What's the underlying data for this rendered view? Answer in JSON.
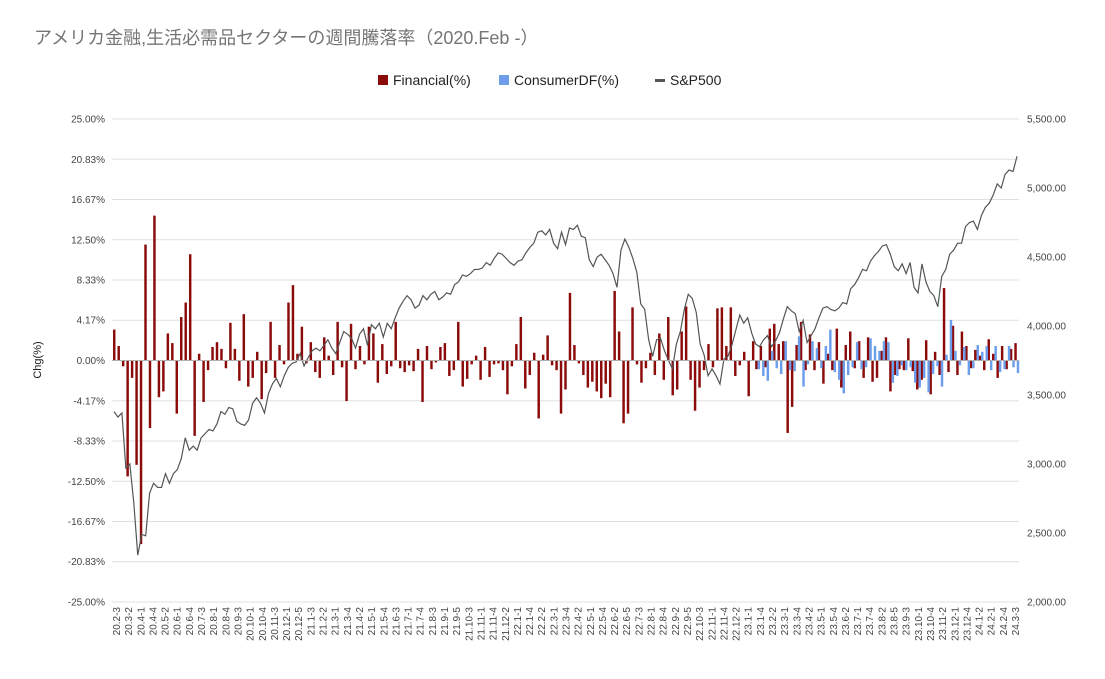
{
  "chart_data": {
    "type": "bar+line",
    "title": "アメリカ金融,生活必需品セクターの週間騰落率（2020.Feb -）",
    "ylabel": "Chg(%)",
    "y_left": {
      "lim": [
        -25.0,
        25.0
      ],
      "ticks": [
        25.0,
        20.83,
        16.67,
        12.5,
        8.33,
        4.17,
        0.0,
        -4.17,
        -8.33,
        -12.5,
        -16.67,
        -20.83,
        -25.0
      ],
      "tick_labels": [
        "25.00%",
        "20.83%",
        "16.67%",
        "12.50%",
        "8.33%",
        "4.17%",
        "0.00%",
        "-4.17%",
        "-8.33%",
        "-12.50%",
        "-16.67%",
        "-20.83%",
        "-25.00%"
      ]
    },
    "y_right": {
      "lim": [
        2000,
        5500
      ],
      "ticks": [
        5500,
        5000,
        4500,
        4000,
        3500,
        3000,
        2500,
        2000
      ],
      "tick_labels": [
        "5,500.00",
        "5,000.00",
        "4,500.00",
        "4,000.00",
        "3,500.00",
        "3,000.00",
        "2,500.00",
        "2,000.00"
      ]
    },
    "legend": {
      "position": "top",
      "items": [
        {
          "name": "Financial(%)",
          "color": "#8b0a0a",
          "marker": "square"
        },
        {
          "name": "ConsumerDF(%)",
          "color": "#6d9eeb",
          "marker": "square"
        },
        {
          "name": "S&P500",
          "color": "#555555",
          "marker": "line"
        }
      ]
    },
    "x_labels": [
      "20.2-3",
      "20.3-2",
      "20.4-1",
      "20.4-4",
      "20.5-2",
      "20.6-1",
      "20.6-4",
      "20.7-3",
      "20.8-1",
      "20.8-4",
      "20.9-3",
      "20.10-1",
      "20.10-4",
      "20.11-3",
      "20.12-1",
      "20.12-5",
      "21.1-3",
      "21.2-2",
      "21.3-1",
      "21.3-4",
      "21.4-2",
      "21.5-1",
      "21.5-4",
      "21.6-3",
      "21.7-1",
      "21.7-4",
      "21.8-3",
      "21.9-1",
      "21.9-5",
      "21.10-3",
      "21.11-1",
      "21.11-4",
      "21.12-2",
      "22.1-1",
      "22.1-4",
      "22.2-2",
      "22.3-1",
      "22.3-4",
      "22.4-2",
      "22.5-1",
      "22.5-4",
      "22.6-2",
      "22.6-5",
      "22.7-3",
      "22.8-1",
      "22.8-4",
      "22.9-2",
      "22.9-5",
      "22.10-3",
      "22.11-1",
      "22.11-4",
      "22.12-2",
      "23.1-1",
      "23.1-4",
      "23.2-2",
      "23.3-1",
      "23.3-4",
      "23.4-2",
      "23.5-1",
      "23.5-4",
      "23.6-2",
      "23.7-1",
      "23.7-4",
      "23.8-2",
      "23.8-5",
      "23.9-3",
      "23.10-1",
      "23.10-4",
      "23.11-2",
      "23.12-1",
      "23.12-4",
      "24.1-2",
      "24.2-1",
      "24.2-4",
      "24.3-3"
    ],
    "financial": [
      3.2,
      1.5,
      -0.6,
      -12.0,
      -1.8,
      -10.8,
      -19.0,
      12.0,
      -7.0,
      15.0,
      -3.8,
      -3.2,
      2.8,
      1.8,
      -5.5,
      4.5,
      6.0,
      11.0,
      -7.8,
      0.7,
      -4.3,
      -1.0,
      1.4,
      1.9,
      1.2,
      -0.8,
      3.9,
      1.2,
      -2.1,
      4.8,
      -2.7,
      -1.8,
      0.9,
      -4.0,
      -1.3,
      4.0,
      -1.8,
      1.6,
      -0.4,
      6.0,
      7.8,
      0.7,
      3.5,
      -0.3,
      1.9,
      -1.2,
      -1.8,
      2.4,
      0.5,
      -1.5,
      4.0,
      -0.7,
      -4.2,
      3.8,
      -0.9,
      1.5,
      -0.4,
      3.5,
      2.8,
      -2.3,
      1.7,
      -1.4,
      -0.6,
      4.0,
      -0.8,
      -1.2,
      -0.5,
      -1.1,
      1.2,
      -4.3,
      1.5,
      -0.9,
      -0.2,
      1.4,
      1.8,
      -1.6,
      -1.0,
      4.0,
      -2.7,
      -1.9,
      -0.4,
      0.5,
      -2.0,
      1.4,
      -1.7,
      -0.4,
      -0.3,
      -1.0,
      -3.5,
      -0.6,
      1.7,
      4.5,
      -2.9,
      -1.5,
      0.8,
      -6.0,
      0.6,
      2.6,
      -0.5,
      -1.0,
      -5.5,
      -3.0,
      7.0,
      1.6,
      -0.3,
      -1.5,
      -2.8,
      -2.2,
      -3.2,
      -3.9,
      -2.4,
      -3.8,
      7.2,
      3.0,
      -6.5,
      -5.5,
      5.5,
      -0.4,
      -2.3,
      -0.8,
      0.8,
      -1.5,
      2.8,
      -2.0,
      4.5,
      -3.6,
      -3.0,
      3.0,
      5.6,
      -2.0,
      -5.2,
      -2.8,
      -1.0,
      1.7,
      -0.7,
      5.4,
      5.5,
      1.5,
      5.5,
      -1.6,
      -0.5,
      0.9,
      -3.7,
      2.0,
      -0.9,
      1.5,
      -0.7,
      3.3,
      3.8,
      1.7,
      2.0,
      -7.5,
      -4.8,
      1.6,
      4.0,
      -1.0,
      2.7,
      -1.0,
      1.9,
      -2.4,
      0.7,
      -1.0,
      3.3,
      -2.8,
      1.6,
      3.0,
      -0.8,
      2.0,
      -1.8,
      2.4,
      -2.2,
      -1.8,
      1.0,
      2.4,
      -3.2,
      -1.5,
      -0.9,
      -1.0,
      2.3,
      -1.1,
      -3.0,
      -2.0,
      2.1,
      -3.5,
      0.9,
      -1.5,
      7.5,
      -1.2,
      3.6,
      -1.5,
      3.0,
      1.5,
      -0.8,
      1.1,
      0.5,
      -1.0,
      2.2,
      0.7,
      -1.8,
      1.5,
      -0.9,
      1.2,
      1.8
    ],
    "consumerdf_start_index": 144,
    "consumerdf": [
      -0.9,
      -1.6,
      -2.1,
      1.0,
      -0.8,
      -1.4,
      2.0,
      -1.0,
      -1.1,
      2.5,
      -2.7,
      -0.4,
      2.0,
      1.3,
      -0.8,
      1.5,
      3.2,
      -1.2,
      -2.0,
      -3.4,
      -1.5,
      -0.7,
      1.9,
      -0.9,
      -0.7,
      2.3,
      1.5,
      1.0,
      2.0,
      1.9,
      -2.3,
      -1.6,
      -0.5,
      -1.0,
      -0.7,
      -2.3,
      -2.8,
      -1.8,
      -3.3,
      -1.4,
      -0.6,
      -2.7,
      0.6,
      4.2,
      1.0,
      -0.5,
      1.4,
      -1.5,
      -0.8,
      1.6,
      0.9,
      1.5,
      -1.0,
      1.5,
      -1.2,
      -0.9,
      1.5,
      -0.7,
      -1.3,
      -0.8,
      0.5,
      1.7,
      -0.5,
      -0.9,
      1.2,
      0.8,
      -1.0,
      0.4
    ],
    "sp500": [
      3380,
      3340,
      3370,
      2970,
      3000,
      2720,
      2340,
      2490,
      2480,
      2790,
      2860,
      2830,
      2830,
      2930,
      2860,
      2930,
      2960,
      3040,
      3190,
      3100,
      3130,
      3100,
      3190,
      3220,
      3250,
      3240,
      3290,
      3380,
      3360,
      3410,
      3400,
      3310,
      3290,
      3280,
      3320,
      3440,
      3480,
      3440,
      3370,
      3510,
      3580,
      3620,
      3560,
      3640,
      3700,
      3730,
      3740,
      3800,
      3710,
      3770,
      3820,
      3840,
      3820,
      3860,
      3900,
      3840,
      3800,
      3880,
      3960,
      3940,
      3910,
      3840,
      3940,
      3980,
      3860,
      4010,
      3980,
      4020,
      3920,
      4020,
      3980,
      4060,
      4130,
      4180,
      4220,
      4190,
      4130,
      4150,
      4220,
      4190,
      4230,
      4250,
      4190,
      4210,
      4240,
      4230,
      4300,
      4320,
      4370,
      4360,
      4380,
      4410,
      4410,
      4420,
      4460,
      4440,
      4490,
      4530,
      4520,
      4490,
      4460,
      4440,
      4470,
      4480,
      4530,
      4570,
      4600,
      4680,
      4690,
      4660,
      4700,
      4600,
      4560,
      4680,
      4590,
      4710,
      4700,
      4730,
      4650,
      4640,
      4480,
      4430,
      4500,
      4520,
      4480,
      4440,
      4380,
      4280,
      4550,
      4630,
      4570,
      4490,
      4390,
      4160,
      4120,
      3900,
      3780,
      3900,
      3910,
      3820,
      3750,
      3690,
      3870,
      3960,
      4120,
      4230,
      4200,
      4100,
      3870,
      3790,
      3640,
      3690,
      3640,
      3580,
      3760,
      3780,
      3860,
      3970,
      4080,
      4020,
      4060,
      3950,
      3870,
      3850,
      3900,
      3930,
      3850,
      3890,
      3950,
      4050,
      4140,
      4110,
      4090,
      3960,
      4040,
      3880,
      3930,
      3980,
      4060,
      4130,
      4140,
      4120,
      4110,
      4130,
      4170,
      4160,
      4270,
      4300,
      4350,
      4410,
      4400,
      4470,
      4510,
      4540,
      4580,
      4590,
      4520,
      4430,
      4400,
      4450,
      4380,
      4460,
      4280,
      4240,
      4450,
      4320,
      4250,
      4220,
      4140,
      4360,
      4410,
      4520,
      4550,
      4600,
      4600,
      4720,
      4750,
      4760,
      4700,
      4800,
      4860,
      4890,
      4950,
      5030,
      5000,
      5100,
      5130,
      5120,
      5230
    ]
  }
}
